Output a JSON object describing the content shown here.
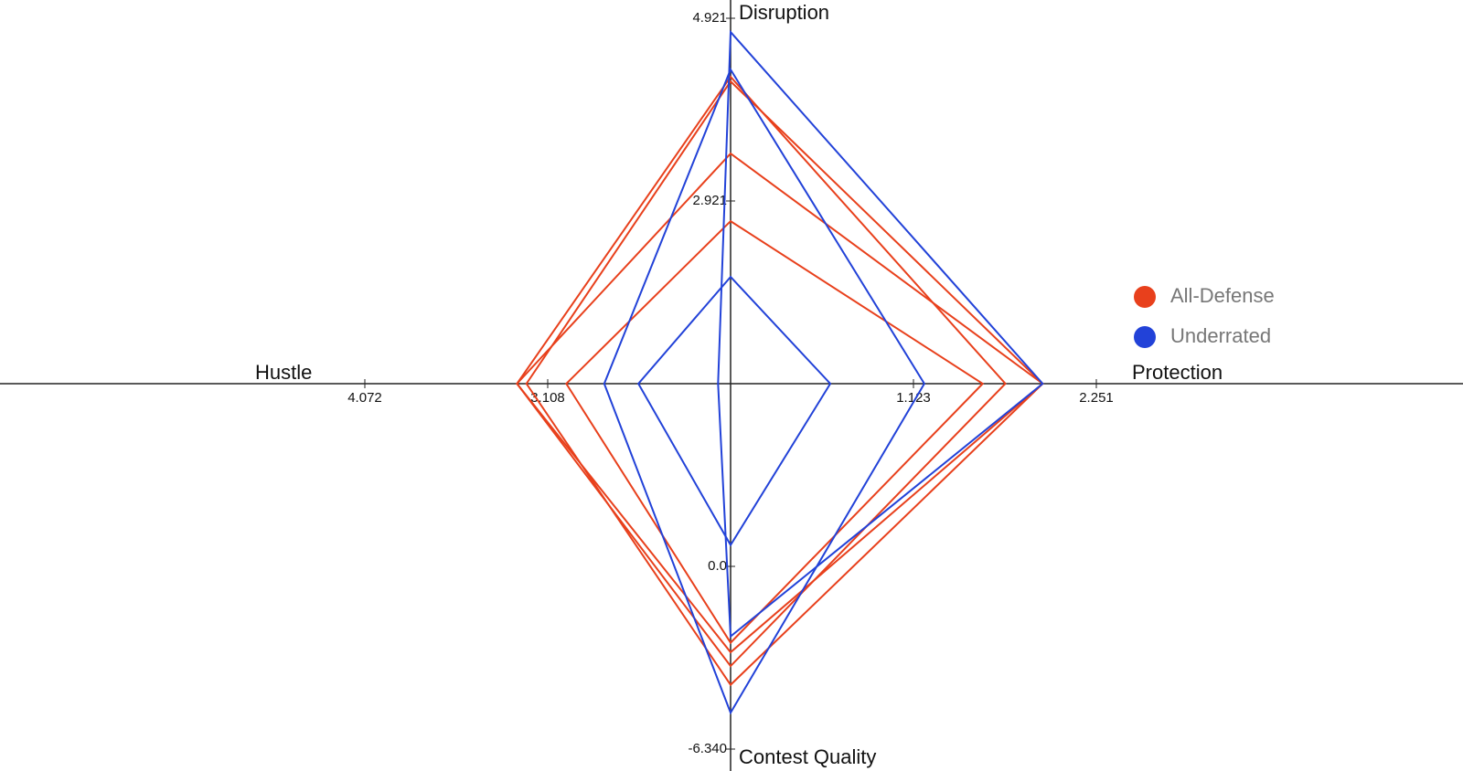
{
  "chart_data": {
    "type": "radar",
    "axes": [
      {
        "name": "Disruption",
        "lim": [
          0.921,
          4.921
        ],
        "ticks": [
          2.921,
          4.921
        ]
      },
      {
        "name": "Protection",
        "lim": [
          -0.005,
          2.251
        ],
        "ticks": [
          1.123,
          2.251
        ]
      },
      {
        "name": "Contest Quality",
        "lim": [
          6.34,
          -6.34
        ],
        "ticks": [
          {
            "value": 0,
            "label": "0.0"
          },
          {
            "value": -6.34,
            "label": "-6.340"
          }
        ]
      },
      {
        "name": "Hustle",
        "lim": [
          2.144,
          4.072
        ],
        "ticks": [
          3.108,
          4.072
        ]
      }
    ],
    "series": [
      {
        "name": "All-Defense",
        "color": "#e8401c",
        "values": [
          [
            4.28,
            1.69,
            -3.46,
            3.27
          ],
          [
            4.23,
            1.92,
            -4.11,
            3.22
          ],
          [
            3.44,
            1.92,
            -2.98,
            3.27
          ],
          [
            2.7,
            1.55,
            -2.65,
            3.01
          ]
        ]
      },
      {
        "name": "Underrated",
        "color": "#2242d8",
        "values": [
          [
            4.77,
            1.92,
            -2.43,
            2.21
          ],
          [
            4.36,
            1.19,
            -5.08,
            2.81
          ],
          [
            2.09,
            0.61,
            0.74,
            2.63
          ]
        ]
      }
    ]
  }
}
